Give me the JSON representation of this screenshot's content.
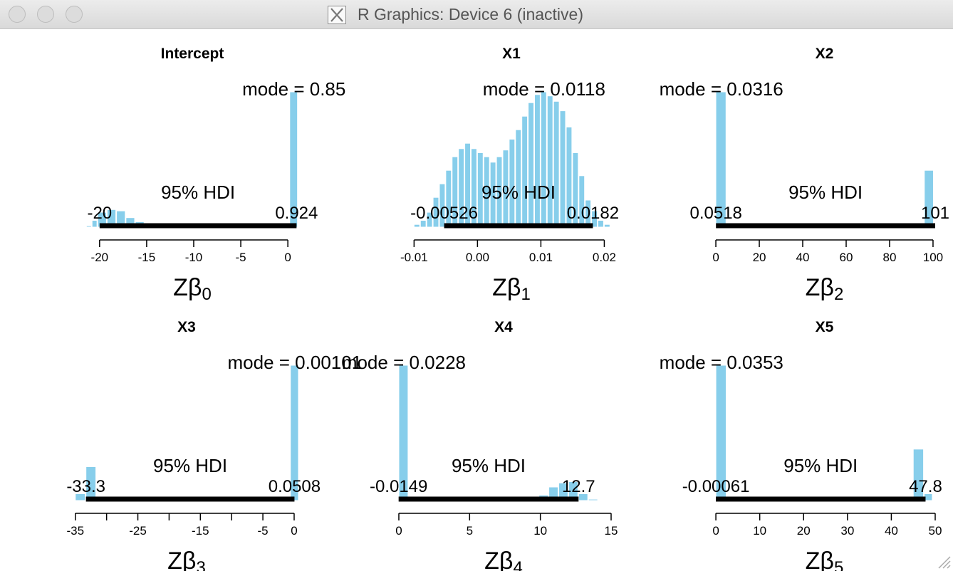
{
  "window": {
    "title": "R Graphics: Device 6 (inactive)",
    "buttons": [
      "close",
      "minimize",
      "zoom"
    ],
    "icon": "x11-icon"
  },
  "colors": {
    "bar": "#87ceeb",
    "hdi": "#000000",
    "text": "#000000"
  },
  "chart_data": [
    {
      "type": "bar",
      "title": "Intercept",
      "xlabel": "Zβ0",
      "xlim": [
        -21.5,
        1.2
      ],
      "ticks": [
        -20,
        -15,
        -10,
        -5,
        0
      ],
      "tick_labels": [
        "-20",
        "-15",
        "-10",
        "-5",
        "0"
      ],
      "mode_label": "mode = 0.85",
      "hdi_label": "95% HDI",
      "hdi": [
        -20,
        0.924
      ],
      "hdi_low_label": "-20",
      "hdi_high_label": "0.924",
      "bins": [
        [
          -21.4,
          -20.8,
          0.01
        ],
        [
          -20.8,
          -20.2,
          0.05
        ],
        [
          -20.2,
          -19.2,
          0.11
        ],
        [
          -19.2,
          -18.2,
          0.13
        ],
        [
          -18.2,
          -17.2,
          0.12
        ],
        [
          -17.2,
          -16.2,
          0.07
        ],
        [
          -16.2,
          -15.2,
          0.04
        ],
        [
          0.2,
          1.1,
          1.0
        ]
      ]
    },
    {
      "type": "bar",
      "title": "X1",
      "xlabel": "Zβ1",
      "xlim": [
        -0.0115,
        0.0222
      ],
      "ticks": [
        -0.01,
        0,
        0.01,
        0.02
      ],
      "tick_labels": [
        "-0.01",
        "0.00",
        "0.01",
        "0.02"
      ],
      "mode_label": "mode = 0.0118",
      "hdi_label": "95% HDI",
      "hdi": [
        -0.00526,
        0.0182
      ],
      "hdi_low_label": "-0.00526",
      "hdi_high_label": "0.0182",
      "bins": [
        [
          -0.01,
          -0.009,
          0.02
        ],
        [
          -0.009,
          -0.008,
          0.05
        ],
        [
          -0.008,
          -0.007,
          0.11
        ],
        [
          -0.007,
          -0.006,
          0.22
        ],
        [
          -0.006,
          -0.005,
          0.32
        ],
        [
          -0.005,
          -0.004,
          0.42
        ],
        [
          -0.004,
          -0.003,
          0.52
        ],
        [
          -0.003,
          -0.002,
          0.58
        ],
        [
          -0.002,
          -0.001,
          0.62
        ],
        [
          -0.001,
          0.0,
          0.58
        ],
        [
          0.0,
          0.001,
          0.55
        ],
        [
          0.001,
          0.002,
          0.52
        ],
        [
          0.002,
          0.003,
          0.48
        ],
        [
          0.003,
          0.004,
          0.52
        ],
        [
          0.004,
          0.005,
          0.57
        ],
        [
          0.005,
          0.006,
          0.65
        ],
        [
          0.006,
          0.007,
          0.72
        ],
        [
          0.007,
          0.008,
          0.82
        ],
        [
          0.008,
          0.009,
          0.92
        ],
        [
          0.009,
          0.01,
          0.98
        ],
        [
          0.01,
          0.011,
          1.0
        ],
        [
          0.011,
          0.012,
          0.97
        ],
        [
          0.012,
          0.013,
          0.93
        ],
        [
          0.013,
          0.014,
          0.86
        ],
        [
          0.014,
          0.015,
          0.74
        ],
        [
          0.015,
          0.016,
          0.55
        ],
        [
          0.016,
          0.017,
          0.38
        ],
        [
          0.017,
          0.018,
          0.2
        ],
        [
          0.018,
          0.019,
          0.12
        ],
        [
          0.019,
          0.02,
          0.05
        ],
        [
          0.02,
          0.021,
          0.02
        ]
      ]
    },
    {
      "type": "bar",
      "title": "X2",
      "xlabel": "Zβ2",
      "xlim": [
        -1,
        101
      ],
      "ticks": [
        0,
        20,
        40,
        60,
        80,
        100
      ],
      "tick_labels": [
        "0",
        "20",
        "40",
        "60",
        "80",
        "100"
      ],
      "mode_label": "mode = 0.0316",
      "hdi_label": "95% HDI",
      "hdi": [
        0.0518,
        101
      ],
      "hdi_low_label": "0.0518",
      "hdi_high_label": "101",
      "bins": [
        [
          0,
          5,
          1.0
        ],
        [
          96,
          100.5,
          0.42
        ],
        [
          100.5,
          101,
          0.52
        ]
      ]
    },
    {
      "type": "bar",
      "title": "X3",
      "xlabel": "Zβ3",
      "xlim": [
        -35.2,
        0.8
      ],
      "ticks": [
        -35,
        -30,
        -25,
        -20,
        -15,
        -10,
        -5,
        0
      ],
      "tick_labels": [
        "-35",
        "",
        "-25",
        "",
        "-15",
        "",
        "-5",
        "0"
      ],
      "mode_label": "mode = 0.00101",
      "hdi_label": "95% HDI",
      "hdi": [
        -33.3,
        0.0508
      ],
      "hdi_low_label": "-33.3",
      "hdi_high_label": "0.0508",
      "bins": [
        [
          -35,
          -33.3,
          0.05
        ],
        [
          -33.3,
          -31.6,
          0.25
        ],
        [
          -0.6,
          0.8,
          1.0
        ]
      ]
    },
    {
      "type": "bar",
      "title": "X4",
      "xlabel": "Zβ4",
      "xlim": [
        -0.2,
        15
      ],
      "ticks": [
        0,
        5,
        10,
        15
      ],
      "tick_labels": [
        "0",
        "5",
        "10",
        "15"
      ],
      "mode_label": "mode = 0.0228",
      "hdi_label": "95% HDI",
      "hdi": [
        -0.0149,
        12.7
      ],
      "hdi_low_label": "-0.0149",
      "hdi_high_label": "12.7",
      "bins": [
        [
          0,
          0.7,
          1.0
        ],
        [
          9.9,
          10.6,
          0.04
        ],
        [
          10.6,
          11.3,
          0.1
        ],
        [
          11.3,
          12.0,
          0.13
        ],
        [
          12.0,
          12.7,
          0.14
        ],
        [
          12.7,
          13.4,
          0.05
        ],
        [
          13.4,
          14.1,
          0.01
        ]
      ]
    },
    {
      "type": "bar",
      "title": "X5",
      "xlabel": "Zβ5",
      "xlim": [
        -0.5,
        50
      ],
      "ticks": [
        0,
        10,
        20,
        30,
        40,
        50
      ],
      "tick_labels": [
        "0",
        "10",
        "20",
        "30",
        "40",
        "50"
      ],
      "mode_label": "mode = 0.0353",
      "hdi_label": "95% HDI",
      "hdi": [
        -0.00061,
        47.8
      ],
      "hdi_low_label": "-0.00061",
      "hdi_high_label": "47.8",
      "bins": [
        [
          0,
          2.5,
          1.0
        ],
        [
          42.7,
          45,
          0.02
        ],
        [
          45,
          47.5,
          0.38
        ],
        [
          47.5,
          49.5,
          0.05
        ]
      ]
    }
  ]
}
